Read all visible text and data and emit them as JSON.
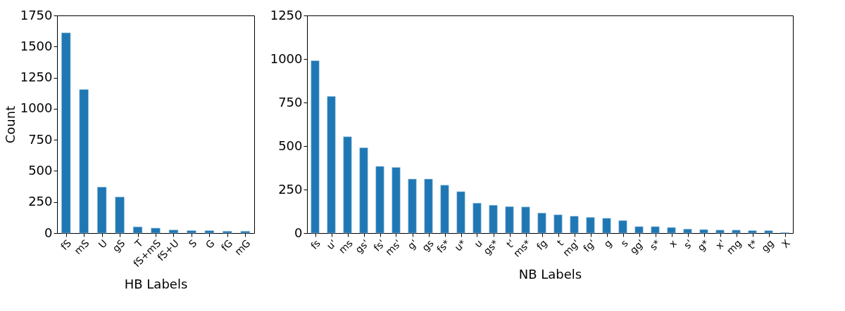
{
  "chart_data": [
    {
      "type": "bar",
      "xlabel": "HB Labels",
      "ylabel": "Count",
      "color": "#1f77b4",
      "grid": false,
      "categories": [
        "fS",
        "mS",
        "U",
        "gS",
        "T",
        "fS+mS",
        "fS+U",
        "S",
        "G",
        "fG",
        "mG"
      ],
      "values": [
        1610,
        1155,
        370,
        290,
        50,
        40,
        25,
        20,
        20,
        15,
        15
      ],
      "ylim": [
        0,
        1750
      ],
      "yticks": [
        0,
        250,
        500,
        750,
        1000,
        1250,
        1500,
        1750
      ]
    },
    {
      "type": "bar",
      "xlabel": "NB Labels",
      "color": "#1f77b4",
      "grid": false,
      "categories": [
        "fs",
        "u'",
        "ms",
        "gs'",
        "fs'",
        "ms'",
        "g'",
        "gs",
        "fs*",
        "u*",
        "u",
        "gs*",
        "t'",
        "ms*",
        "fg",
        "t",
        "mg'",
        "fg'",
        "g",
        "s",
        "gg'",
        "s*",
        "x",
        "s'",
        "g*",
        "x'",
        "mg",
        "t*",
        "gg",
        "X"
      ],
      "values": [
        990,
        785,
        553,
        490,
        383,
        377,
        310,
        310,
        275,
        238,
        172,
        160,
        152,
        150,
        115,
        105,
        97,
        90,
        85,
        72,
        37,
        37,
        32,
        23,
        20,
        17,
        17,
        14,
        14,
        3
      ],
      "ylim": [
        0,
        1250
      ],
      "yticks": [
        0,
        250,
        500,
        750,
        1000,
        1250
      ]
    }
  ]
}
